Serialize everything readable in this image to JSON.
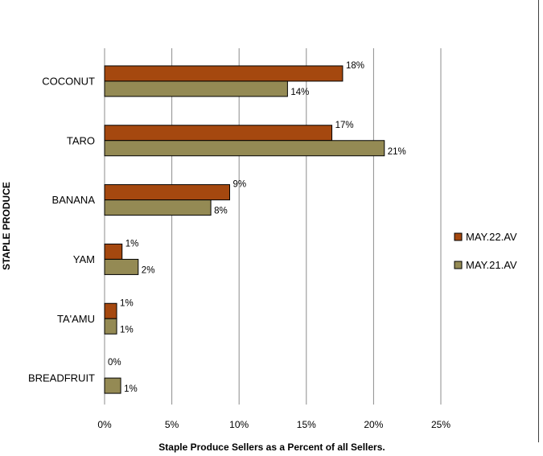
{
  "chart_data": {
    "type": "bar",
    "orientation": "horizontal",
    "categories": [
      "COCONUT",
      "TARO",
      "BANANA",
      "YAM",
      "TA'AMU",
      "BREADFRUIT"
    ],
    "series": [
      {
        "name": "MAY.22.AV",
        "color": "#A5480F",
        "values": [
          17.7,
          16.9,
          9.3,
          1.3,
          0.9,
          0.0
        ],
        "labels": [
          "18%",
          "17%",
          "9%",
          "1%",
          "1%",
          "0%"
        ]
      },
      {
        "name": "MAY.21.AV",
        "color": "#948A54",
        "values": [
          13.6,
          20.8,
          7.9,
          2.5,
          0.9,
          1.2
        ],
        "labels": [
          "14%",
          "21%",
          "8%",
          "2%",
          "1%",
          "1%"
        ]
      }
    ],
    "xlim": [
      0,
      25
    ],
    "xticks": [
      "0%",
      "5%",
      "10%",
      "15%",
      "20%",
      "25%"
    ],
    "xlabel": "Staple Produce Sellers as a Percent of all Sellers.",
    "ylabel": "STAPLE PRODUCE",
    "grid": "vertical",
    "legend": "right"
  }
}
